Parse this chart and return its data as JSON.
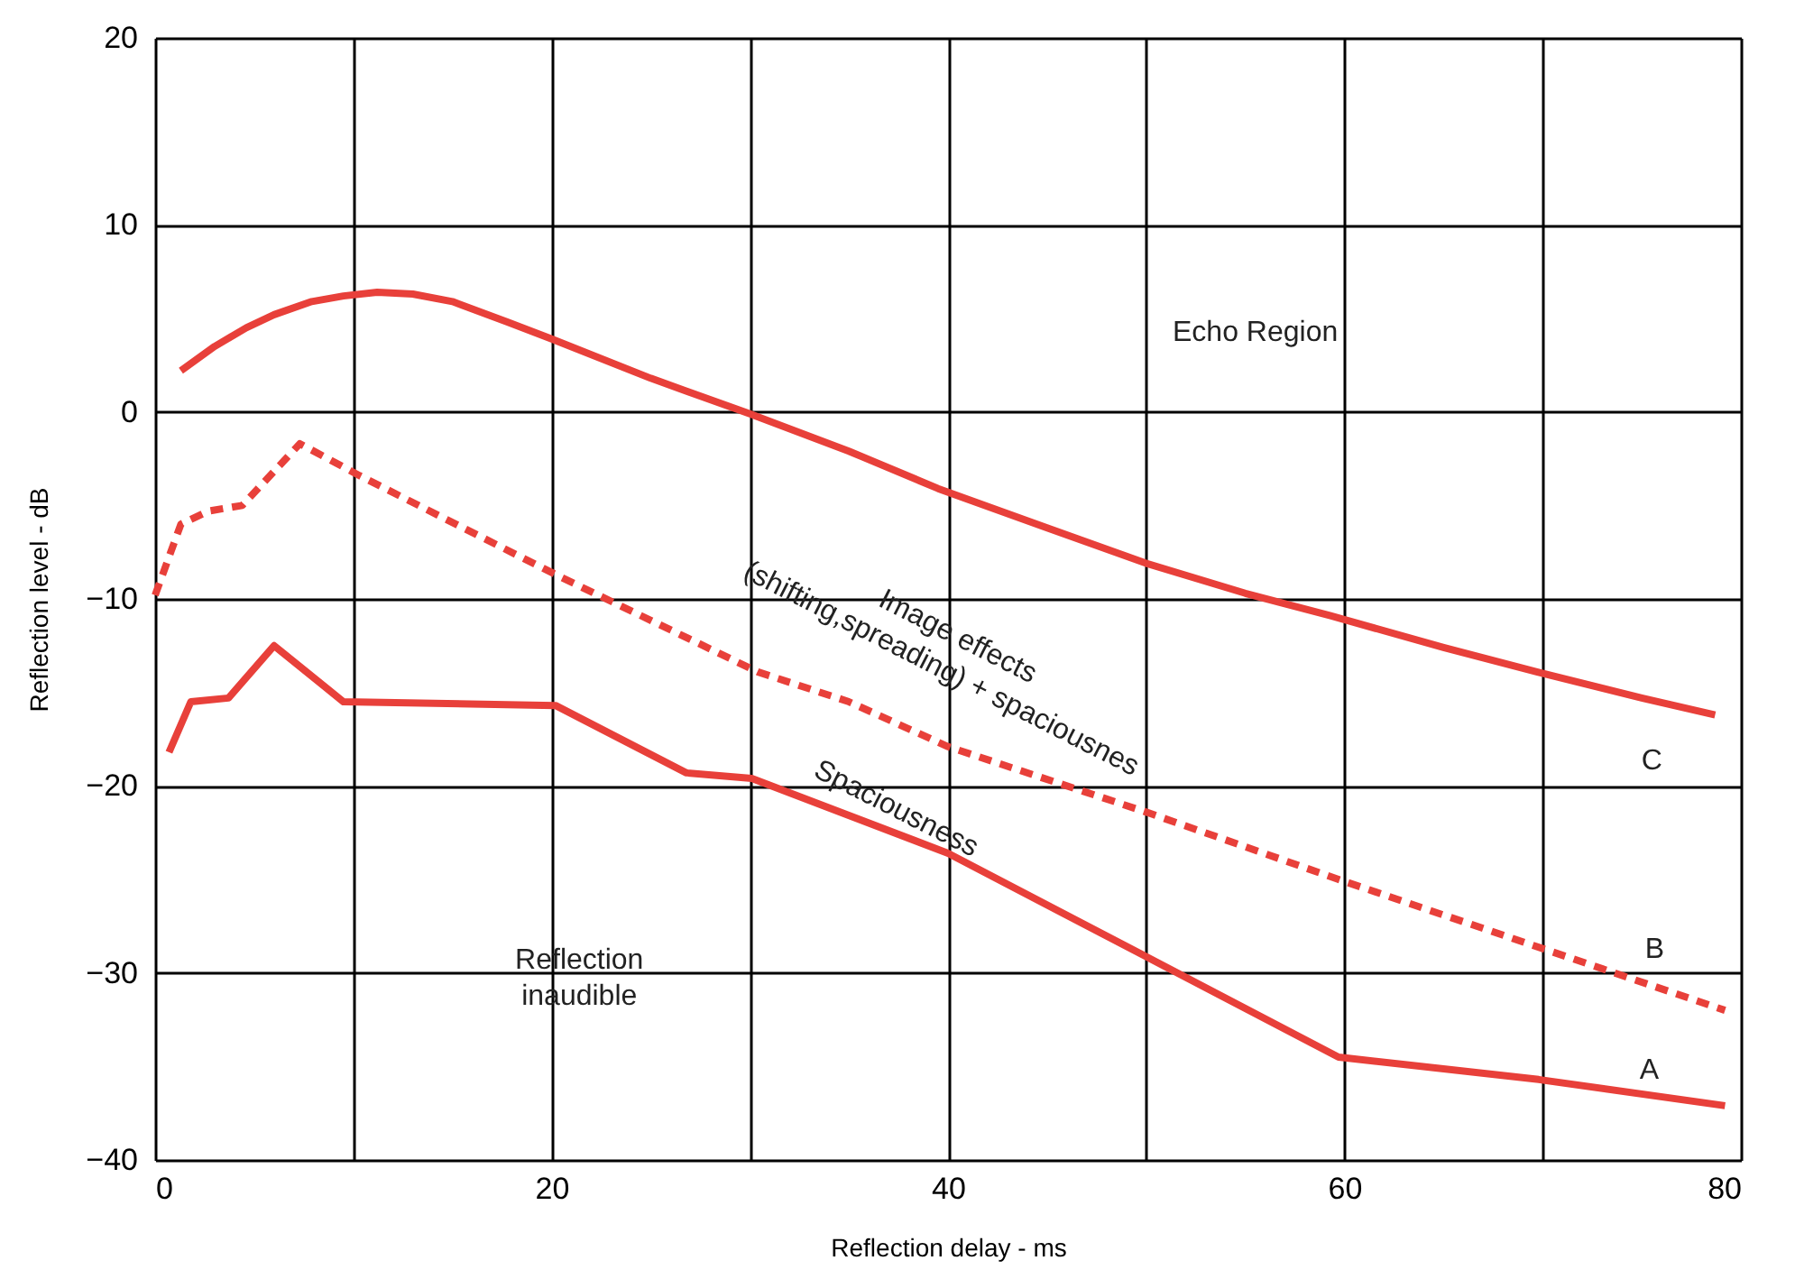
{
  "chart_data": {
    "type": "line",
    "xlabel": "Reflection delay - ms",
    "ylabel": "Reflection level - dB",
    "xlim": [
      0,
      80
    ],
    "ylim": [
      -40,
      20
    ],
    "xticks": [
      0,
      {
        "value": 10,
        "label": null
      },
      20,
      {
        "value": 30,
        "label": null
      },
      40,
      {
        "value": 50,
        "label": null
      },
      60,
      {
        "value": 70,
        "label": null
      },
      80
    ],
    "yticks": [
      -40,
      -30,
      -20,
      -10,
      0,
      10,
      20
    ],
    "grid": true,
    "marker": "none",
    "series": [
      {
        "name": "C",
        "color": "#e8403a",
        "line_style": "solid",
        "x": [
          1.3,
          3,
          4.6,
          6,
          7.9,
          9.5,
          11.2,
          13,
          15,
          17.8,
          20,
          25,
          30,
          35,
          39.5,
          45,
          50,
          55,
          59.3,
          65,
          69.7,
          75,
          78.7
        ],
        "values": [
          2.2,
          3.5,
          4.5,
          5.2,
          5.9,
          6.2,
          6.4,
          6.3,
          5.9,
          4.8,
          3.9,
          1.8,
          -0.1,
          -2.1,
          -4.1,
          -6.2,
          -8.1,
          -9.7,
          -10.9,
          -12.6,
          -13.9,
          -15.3,
          -16.2
        ]
      },
      {
        "name": "B",
        "color": "#e8403a",
        "line_style": "dashed",
        "x": [
          0,
          1.3,
          2.7,
          4.4,
          7.3,
          10.3,
          20.4,
          30.4,
          35,
          40,
          50,
          59.7,
          79.2
        ],
        "values": [
          -9.8,
          -6,
          -5.3,
          -5,
          -1.7,
          -3.4,
          -8.8,
          -13.9,
          -15.5,
          -17.9,
          -21.4,
          -25,
          -32
        ]
      },
      {
        "name": "A",
        "color": "#e8403a",
        "line_style": "solid",
        "x": [
          0.7,
          1.8,
          3.7,
          6,
          9.5,
          20.2,
          26.8,
          30.1,
          40,
          59.7,
          69.8,
          79.2
        ],
        "values": [
          -18.2,
          -15.5,
          -15.3,
          -12.5,
          -15.5,
          -15.7,
          -19.3,
          -19.6,
          -23.6,
          -34.5,
          -35.7,
          -37.1
        ]
      }
    ],
    "annotations": [
      "Echo Region",
      "Image effects\n(shifting,spreading) + spaciousnes",
      "Spaciousness",
      "Reflection\ninaudible"
    ]
  }
}
